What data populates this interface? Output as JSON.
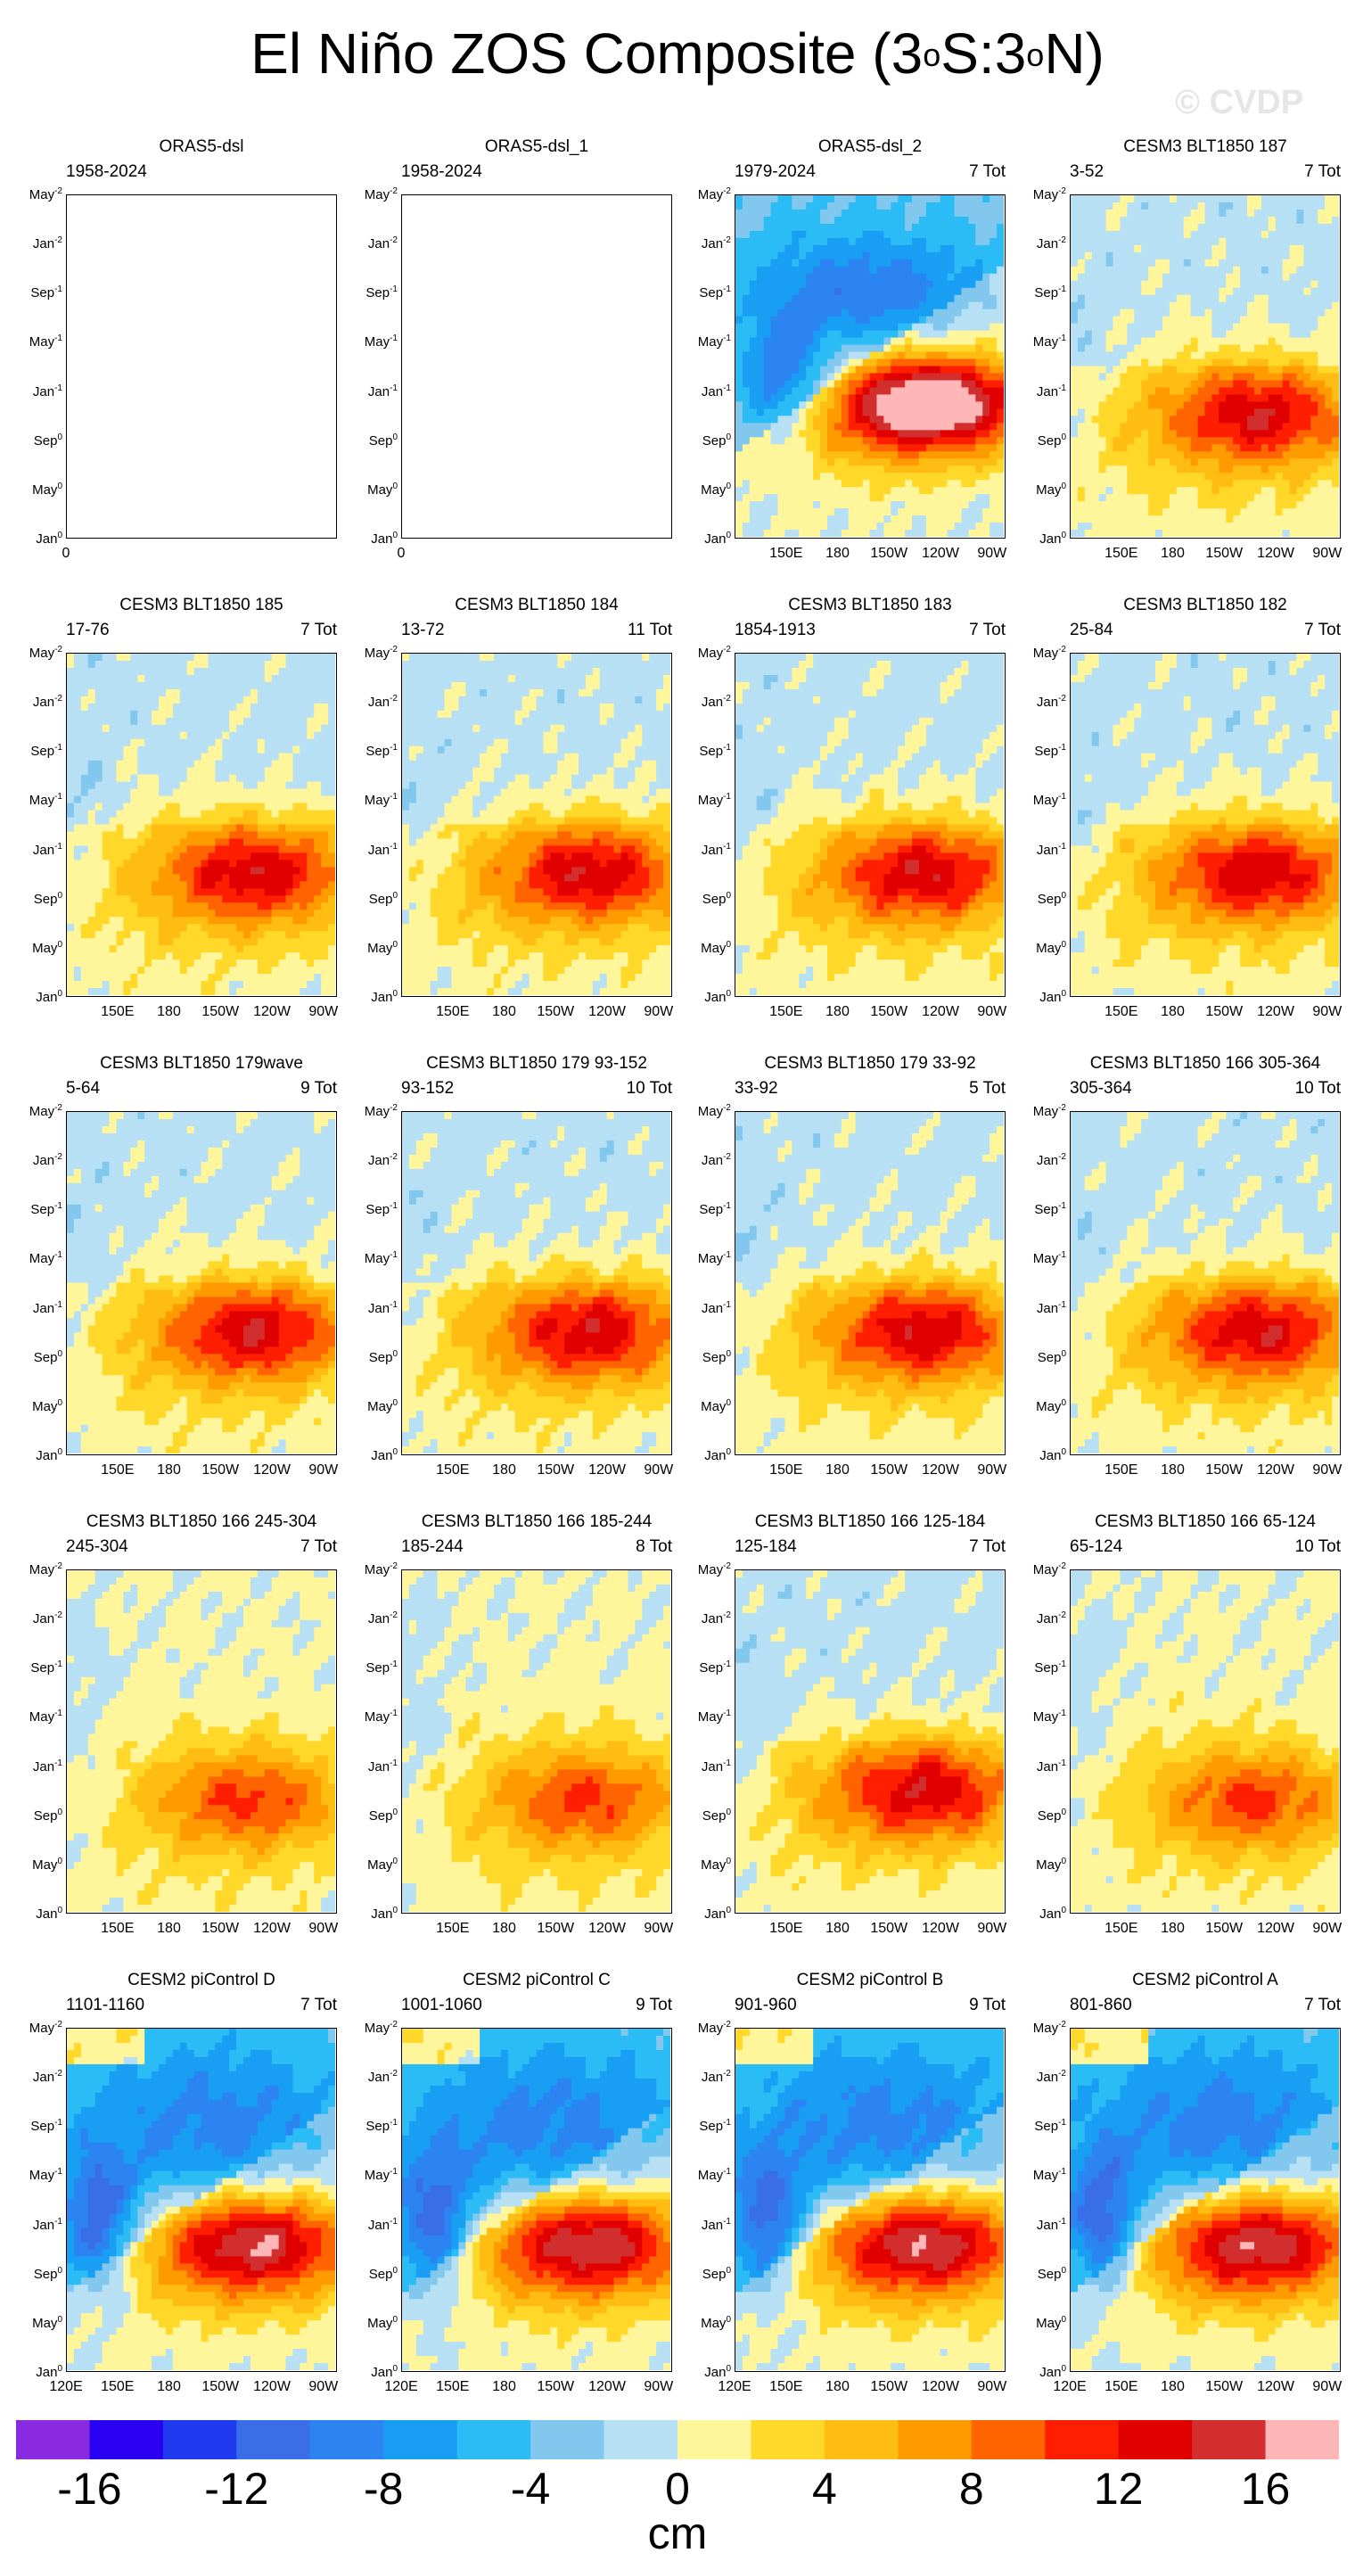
{
  "title": {
    "main": "El Niño ZOS Composite (3",
    "sup1": "o",
    "mid": "S:3",
    "sup2": "o",
    "end": "N)"
  },
  "watermark": "© CVDP",
  "y_ticks": [
    {
      "base": "May",
      "sup": "-2"
    },
    {
      "base": "Jan",
      "sup": "-2"
    },
    {
      "base": "Sep",
      "sup": "-1"
    },
    {
      "base": "May",
      "sup": "-1"
    },
    {
      "base": "Jan",
      "sup": "-1"
    },
    {
      "base": "Sep",
      "sup": "0"
    },
    {
      "base": "May",
      "sup": "0"
    },
    {
      "base": "Jan",
      "sup": "0"
    }
  ],
  "x_ticks": [
    "150E",
    "180",
    "150W",
    "120W",
    "90W"
  ],
  "x_ticks_bottom": [
    "120E",
    "150E",
    "180",
    "150W",
    "120W",
    "90W"
  ],
  "empty_x_tick": "0",
  "colorbar": {
    "colors": [
      "#8a2be2",
      "#2a00f5",
      "#1f3bf0",
      "#3a6ee8",
      "#2b84f2",
      "#189ef2",
      "#2bbcf6",
      "#82c8ee",
      "#b8e0f4",
      "#fff59a",
      "#ffd82a",
      "#ffbd13",
      "#ff9a00",
      "#ff6400",
      "#ff1e00",
      "#e10000",
      "#d22e2e",
      "#ffb6b6"
    ],
    "tick_labels": [
      "-16",
      "-12",
      "-8",
      "-4",
      "0",
      "4",
      "8",
      "12",
      "16"
    ],
    "units": "cm"
  },
  "chart_data": [
    {
      "type": "heatmap",
      "title": "ORAS5-dsl",
      "years": "1958-2024",
      "count": "",
      "pattern": "empty"
    },
    {
      "type": "heatmap",
      "title": "ORAS5-dsl_1",
      "years": "1958-2024",
      "count": "",
      "pattern": "empty"
    },
    {
      "type": "heatmap",
      "title": "ORAS5-dsl_2",
      "years": "1979-2024",
      "count": "7 Tot",
      "pattern": "strong"
    },
    {
      "type": "heatmap",
      "title": "CESM3 BLT1850 187",
      "years": "3-52",
      "count": "7 Tot",
      "pattern": "moderate"
    },
    {
      "type": "heatmap",
      "title": "CESM3 BLT1850 185",
      "years": "17-76",
      "count": "7 Tot",
      "pattern": "moderate"
    },
    {
      "type": "heatmap",
      "title": "CESM3 BLT1850 184",
      "years": "13-72",
      "count": "11 Tot",
      "pattern": "moderate"
    },
    {
      "type": "heatmap",
      "title": "CESM3 BLT1850 183",
      "years": "1854-1913",
      "count": "7 Tot",
      "pattern": "moderate"
    },
    {
      "type": "heatmap",
      "title": "CESM3 BLT1850 182",
      "years": "25-84",
      "count": "7 Tot",
      "pattern": "moderate"
    },
    {
      "type": "heatmap",
      "title": "CESM3 BLT1850 179wave",
      "years": "5-64",
      "count": "9 Tot",
      "pattern": "moderate"
    },
    {
      "type": "heatmap",
      "title": "CESM3 BLT1850 179 93-152",
      "years": "93-152",
      "count": "10 Tot",
      "pattern": "moderate"
    },
    {
      "type": "heatmap",
      "title": "CESM3 BLT1850 179 33-92",
      "years": "33-92",
      "count": "5 Tot",
      "pattern": "moderate"
    },
    {
      "type": "heatmap",
      "title": "CESM3 BLT1850 166 305-364",
      "years": "305-364",
      "count": "10 Tot",
      "pattern": "moderate"
    },
    {
      "type": "heatmap",
      "title": "CESM3 BLT1850 166 245-304",
      "years": "245-304",
      "count": "7 Tot",
      "pattern": "weak"
    },
    {
      "type": "heatmap",
      "title": "CESM3 BLT1850 166 185-244",
      "years": "185-244",
      "count": "8 Tot",
      "pattern": "weak"
    },
    {
      "type": "heatmap",
      "title": "CESM3 BLT1850 166 125-184",
      "years": "125-184",
      "count": "7 Tot",
      "pattern": "moderate"
    },
    {
      "type": "heatmap",
      "title": "CESM3 BLT1850 166 65-124",
      "years": "65-124",
      "count": "10 Tot",
      "pattern": "weak"
    },
    {
      "type": "heatmap",
      "title": "CESM2 piControl D",
      "years": "1101-1160",
      "count": "7 Tot",
      "pattern": "strong2"
    },
    {
      "type": "heatmap",
      "title": "CESM2 piControl C",
      "years": "1001-1060",
      "count": "9 Tot",
      "pattern": "strong2"
    },
    {
      "type": "heatmap",
      "title": "CESM2 piControl B",
      "years": "901-960",
      "count": "9 Tot",
      "pattern": "strong2"
    },
    {
      "type": "heatmap",
      "title": "CESM2 piControl A",
      "years": "801-860",
      "count": "7 Tot",
      "pattern": "strong2"
    }
  ]
}
